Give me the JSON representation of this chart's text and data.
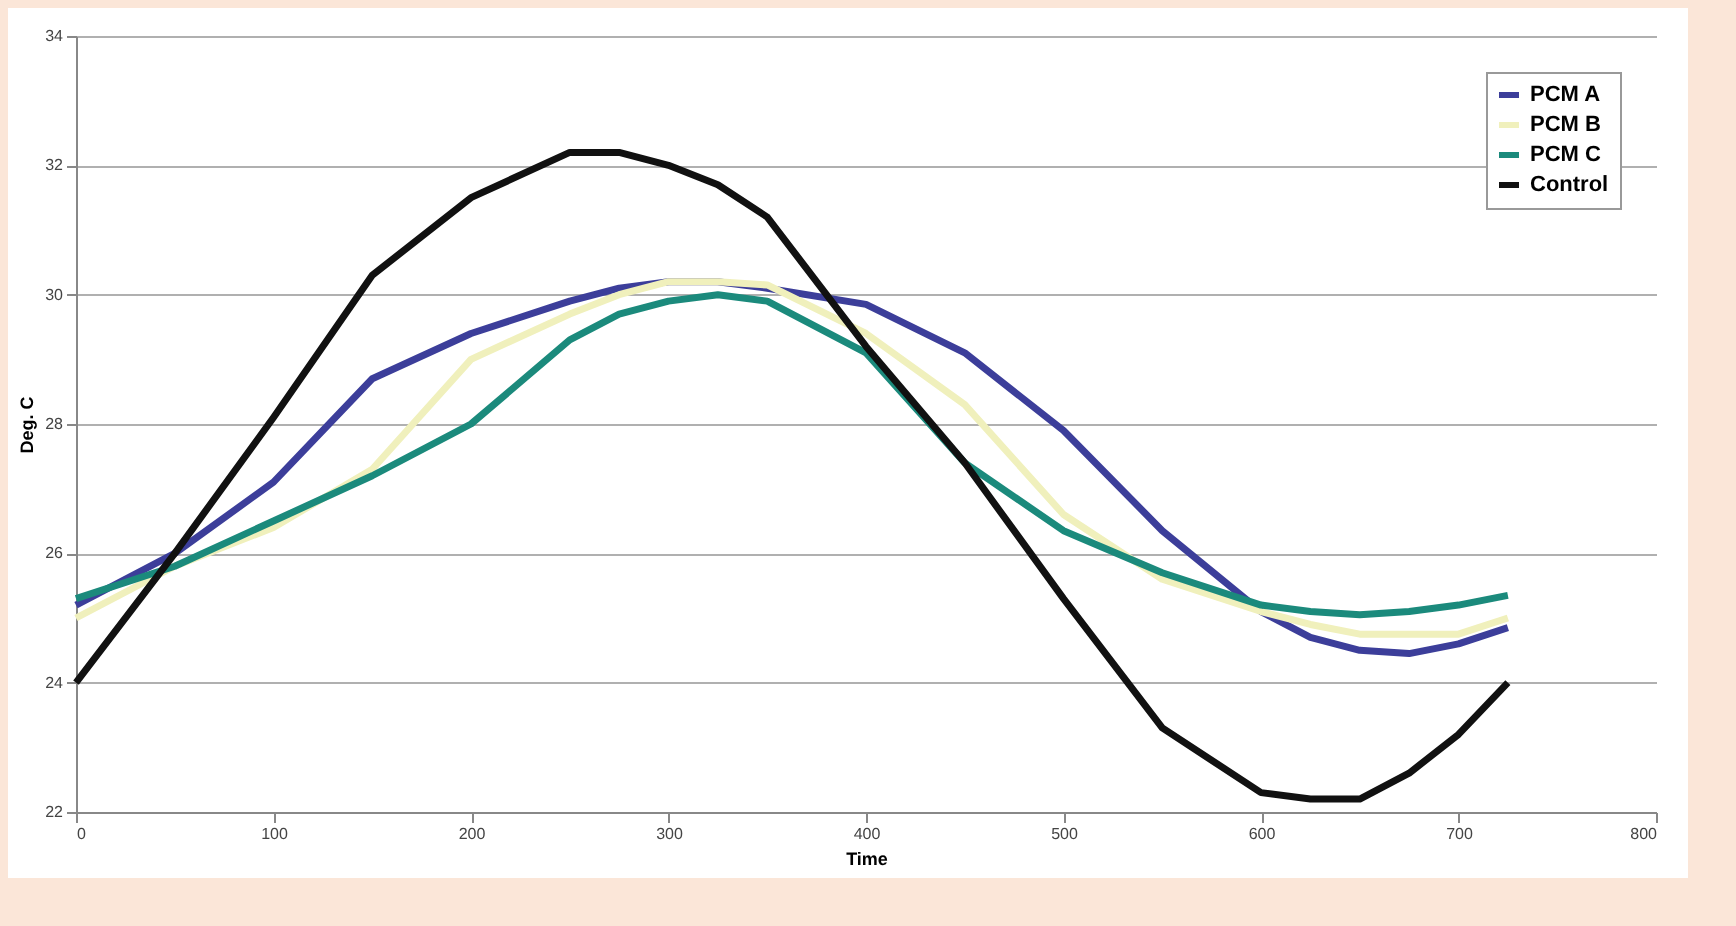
{
  "chart_data": {
    "type": "line",
    "xlabel": "Time",
    "ylabel": "Deg. C",
    "x": [
      0,
      50,
      100,
      150,
      200,
      250,
      275,
      300,
      325,
      350,
      400,
      450,
      500,
      550,
      600,
      625,
      650,
      675,
      700,
      725
    ],
    "series": [
      {
        "name": "PCM A",
        "color": "#3c3e9a",
        "values": [
          25.2,
          26.0,
          27.1,
          28.7,
          29.4,
          29.9,
          30.1,
          30.2,
          30.2,
          30.1,
          29.85,
          29.1,
          27.9,
          26.35,
          25.1,
          24.7,
          24.5,
          24.45,
          24.6,
          24.85
        ]
      },
      {
        "name": "PCM B",
        "color": "#f0f0bc",
        "values": [
          25.0,
          25.8,
          26.4,
          27.3,
          29.0,
          29.7,
          30.0,
          30.2,
          30.2,
          30.15,
          29.4,
          28.3,
          26.6,
          25.6,
          25.1,
          24.9,
          24.75,
          24.75,
          24.75,
          25.0
        ]
      },
      {
        "name": "PCM C",
        "color": "#1b8a7c",
        "values": [
          25.3,
          25.8,
          26.5,
          27.2,
          28.0,
          29.3,
          29.7,
          29.9,
          30.0,
          29.9,
          29.1,
          27.4,
          26.35,
          25.7,
          25.2,
          25.1,
          25.05,
          25.1,
          25.2,
          25.35
        ]
      },
      {
        "name": "Control",
        "color": "#111111",
        "values": [
          24.0,
          26.0,
          28.1,
          30.3,
          31.5,
          32.2,
          32.2,
          32.0,
          31.7,
          31.2,
          29.2,
          27.4,
          25.3,
          23.3,
          22.3,
          22.2,
          22.2,
          22.6,
          23.2,
          24.0
        ]
      }
    ],
    "xlim": [
      0,
      800
    ],
    "xticks": [
      0,
      100,
      200,
      300,
      400,
      500,
      600,
      700,
      800
    ],
    "ylim": [
      22,
      34
    ],
    "yticks": [
      22,
      24,
      26,
      28,
      30,
      32,
      34
    ],
    "grid": "y",
    "legend": "top right",
    "marker": "none",
    "line_style": "solid"
  }
}
